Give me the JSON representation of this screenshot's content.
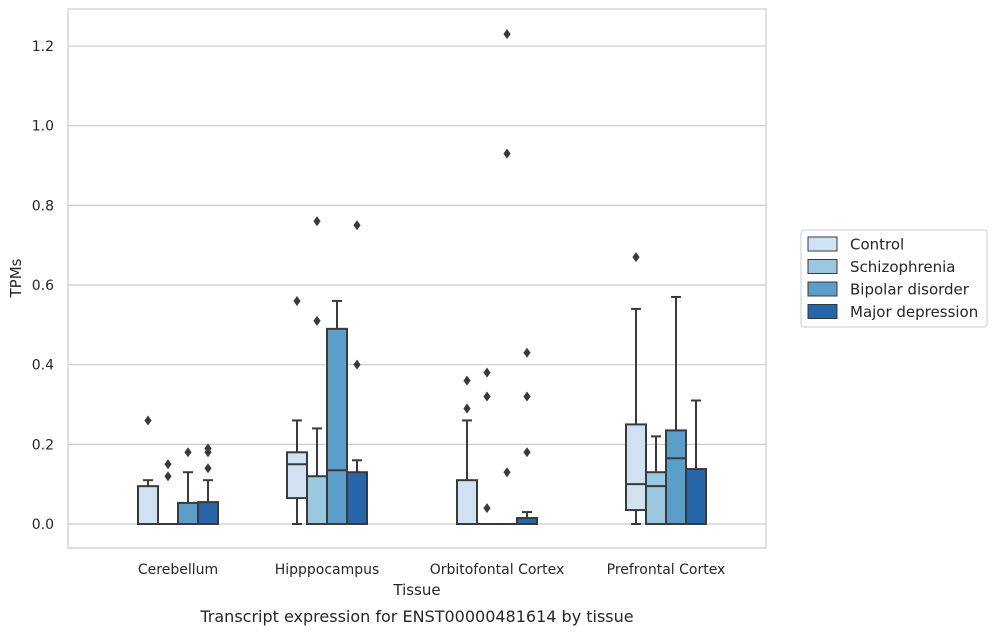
{
  "chart_data": {
    "type": "box",
    "xlabel": "Tissue",
    "ylabel": "TPMs",
    "caption": "Transcript expression for ENST00000481614 by tissue",
    "categories": [
      "Cerebellum",
      "Hipppocampus",
      "Orbitofontal Cortex",
      "Prefrontal Cortex"
    ],
    "ylim": [
      -0.06,
      1.29
    ],
    "yticks": [
      "0.0",
      "0.2",
      "0.4",
      "0.6",
      "0.8",
      "1.0",
      "1.2"
    ],
    "grid": "horizontal",
    "legend_position": "right",
    "series": [
      {
        "name": "Control",
        "color": "#d0e1f2",
        "boxes": [
          {
            "min": 0.0,
            "q1": 0.0,
            "median": 0.0,
            "q3": 0.095,
            "max": 0.11,
            "outliers": [
              0.26
            ]
          },
          {
            "min": 0.0,
            "q1": 0.065,
            "median": 0.15,
            "q3": 0.18,
            "max": 0.26,
            "outliers": [
              0.56
            ]
          },
          {
            "min": 0.0,
            "q1": 0.0,
            "median": 0.0,
            "q3": 0.11,
            "max": 0.26,
            "outliers": [
              0.29,
              0.36
            ]
          },
          {
            "min": 0.0,
            "q1": 0.035,
            "median": 0.1,
            "q3": 0.25,
            "max": 0.54,
            "outliers": [
              0.67
            ]
          }
        ]
      },
      {
        "name": "Schizophrenia",
        "color": "#9ac8e0",
        "boxes": [
          {
            "min": 0.0,
            "q1": 0.0,
            "median": 0.0,
            "q3": 0.0,
            "max": 0.0,
            "outliers": [
              0.12,
              0.15
            ]
          },
          {
            "min": 0.0,
            "q1": 0.0,
            "median": 0.0,
            "q3": 0.12,
            "max": 0.24,
            "outliers": [
              0.51,
              0.76
            ]
          },
          {
            "min": 0.0,
            "q1": 0.0,
            "median": 0.0,
            "q3": 0.0,
            "max": 0.0,
            "outliers": [
              0.04,
              0.32,
              0.38
            ]
          },
          {
            "min": 0.0,
            "q1": 0.0,
            "median": 0.095,
            "q3": 0.13,
            "max": 0.22,
            "outliers": []
          }
        ]
      },
      {
        "name": "Bipolar disorder",
        "color": "#5a9ec9",
        "boxes": [
          {
            "min": 0.0,
            "q1": 0.0,
            "median": 0.0,
            "q3": 0.053,
            "max": 0.13,
            "outliers": [
              0.18
            ]
          },
          {
            "min": 0.0,
            "q1": 0.0,
            "median": 0.135,
            "q3": 0.49,
            "max": 0.56,
            "outliers": []
          },
          {
            "min": 0.0,
            "q1": 0.0,
            "median": 0.0,
            "q3": 0.0,
            "max": 0.0,
            "outliers": [
              0.13,
              0.93,
              1.23
            ]
          },
          {
            "min": 0.0,
            "q1": 0.0,
            "median": 0.165,
            "q3": 0.235,
            "max": 0.57,
            "outliers": []
          }
        ]
      },
      {
        "name": "Major depression",
        "color": "#2565a8",
        "boxes": [
          {
            "min": 0.0,
            "q1": 0.0,
            "median": 0.0,
            "q3": 0.055,
            "max": 0.11,
            "outliers": [
              0.14,
              0.18,
              0.19
            ]
          },
          {
            "min": 0.0,
            "q1": 0.0,
            "median": 0.0,
            "q3": 0.13,
            "max": 0.16,
            "outliers": [
              0.4,
              0.75
            ]
          },
          {
            "min": 0.0,
            "q1": 0.0,
            "median": 0.0,
            "q3": 0.015,
            "max": 0.03,
            "outliers": [
              0.18,
              0.32,
              0.43
            ]
          },
          {
            "min": 0.0,
            "q1": 0.0,
            "median": 0.0,
            "q3": 0.138,
            "max": 0.31,
            "outliers": []
          }
        ]
      }
    ]
  }
}
